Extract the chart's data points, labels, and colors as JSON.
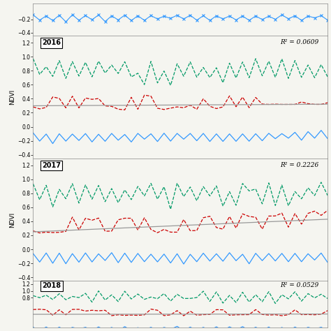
{
  "panels": [
    {
      "year": "",
      "show_legend": true,
      "r2": null,
      "ylim": [
        -0.45,
        0.05
      ],
      "yticks": [
        -0.4,
        -0.2
      ],
      "partial": true
    },
    {
      "year": "2016",
      "show_legend": true,
      "r2": "R² = 0.0609",
      "ylim": [
        -0.45,
        1.3
      ],
      "yticks": [
        -0.4,
        -0.2,
        0.0,
        0.2,
        0.4,
        0.6,
        0.8,
        1.0,
        1.2
      ],
      "linear_slope": 0.0005,
      "linear_intercept": 0.3,
      "partial": false
    },
    {
      "year": "2017",
      "show_legend": true,
      "r2": "R² = 0.2226",
      "ylim": [
        -0.45,
        1.3
      ],
      "yticks": [
        -0.4,
        -0.2,
        0.0,
        0.2,
        0.4,
        0.6,
        0.8,
        1.0,
        1.2
      ],
      "linear_slope": 0.004,
      "linear_intercept": 0.25,
      "partial": false
    },
    {
      "year": "2018",
      "show_legend": false,
      "r2": "R² = 0.0529",
      "ylim": [
        -0.1,
        1.3
      ],
      "yticks": [
        0.8,
        1.0,
        1.2
      ],
      "linear_slope": 0.0002,
      "linear_intercept": 0.3,
      "partial": true
    }
  ],
  "n_points": 46,
  "colors": {
    "minimum": "#3399FF",
    "maximum": "#009966",
    "mean": "#CC0000",
    "linear": "#999999"
  },
  "bg_color": "#F5F5F0",
  "ylabel": "NDVI"
}
